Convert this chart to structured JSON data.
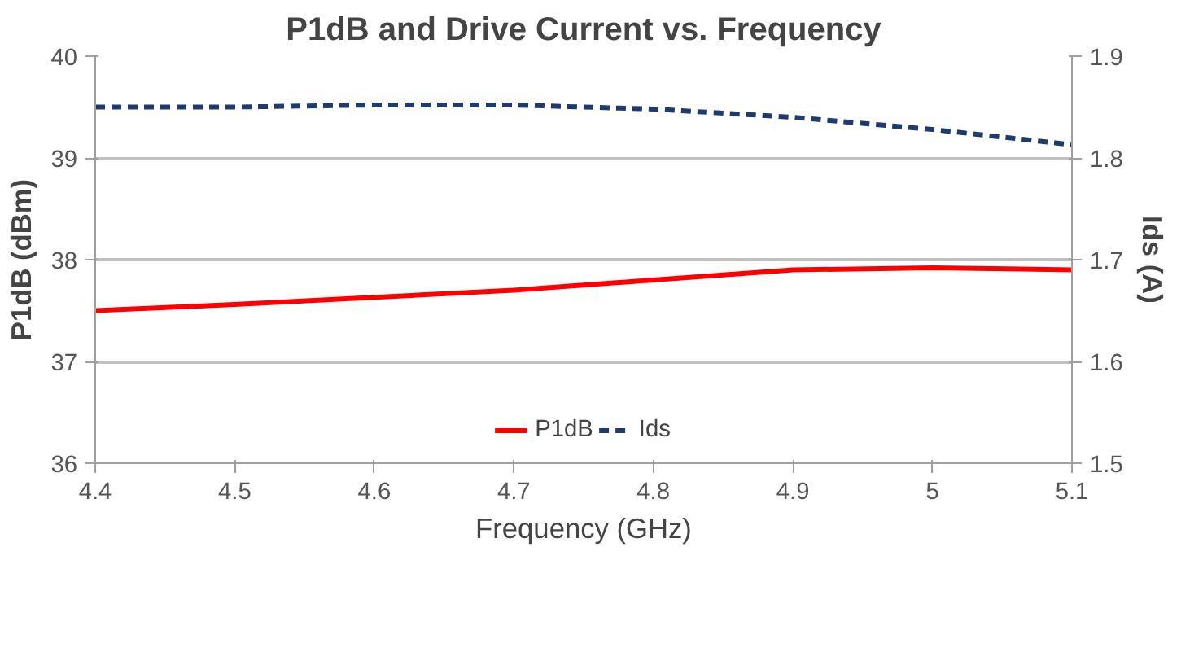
{
  "chart_data": {
    "type": "line",
    "title": "P1dB and Drive Current vs. Frequency",
    "xlabel": "Frequency (GHz)",
    "ylabel": "P1dB (dBm)",
    "y2label": "Ids (A)",
    "x": [
      4.4,
      4.5,
      4.6,
      4.7,
      4.8,
      4.9,
      5.0,
      5.1
    ],
    "series": [
      {
        "name": "P1dB",
        "color": "#ff0000",
        "values": [
          37.5,
          37.56,
          37.63,
          37.7,
          37.8,
          37.9,
          37.92,
          37.9
        ],
        "line_style": "solid"
      },
      {
        "name": "Ids",
        "color": "#1f3a6e",
        "values": [
          1.85,
          1.85,
          1.852,
          1.852,
          1.848,
          1.84,
          1.828,
          1.813
        ],
        "axis": "y2",
        "line_style": "dashed"
      }
    ],
    "xlim": [
      4.4,
      5.1
    ],
    "xticks": [
      4.4,
      4.5,
      4.6,
      4.7,
      4.8,
      4.9,
      5,
      5.1
    ],
    "ylim": [
      36,
      40
    ],
    "yticks": [
      36,
      37,
      38,
      39,
      40
    ],
    "y2lim": [
      1.5,
      1.9
    ],
    "y2ticks": [
      1.5,
      1.6,
      1.7,
      1.8,
      1.9
    ],
    "grid": "y",
    "legend": "bottom",
    "marker": "none"
  }
}
